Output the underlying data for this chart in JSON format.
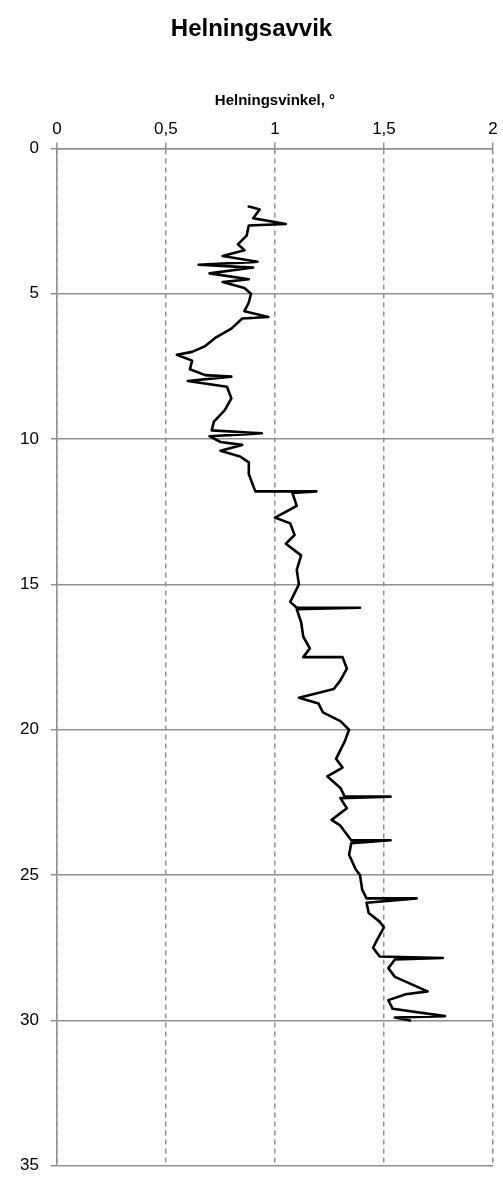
{
  "chart_data": {
    "type": "line",
    "title": "Helningsavvik",
    "xlabel": "Helningsvinkel, °",
    "xlim": [
      0,
      2
    ],
    "xticks": [
      0,
      {
        "value": 0.5,
        "label": "0,5"
      },
      1,
      {
        "value": 1.5,
        "label": "1,5"
      },
      2
    ],
    "ylim": [
      35,
      0
    ],
    "yticks": [
      0,
      5,
      10,
      15,
      20,
      25,
      30,
      35
    ],
    "grid": true,
    "legend": false,
    "marker": "none",
    "line_style": "solid",
    "series": [
      {
        "color": "#000000",
        "x": [
          0.88,
          0.93,
          0.9,
          1.05,
          0.88,
          0.87,
          0.83,
          0.86,
          0.76,
          0.92,
          0.65,
          0.9,
          0.7,
          0.88,
          0.76,
          0.86,
          0.89,
          0.88,
          0.86,
          0.97,
          0.85,
          0.8,
          0.73,
          0.68,
          0.62,
          0.55,
          0.62,
          0.61,
          0.68,
          0.8,
          0.6,
          0.78,
          0.8,
          0.77,
          0.72,
          0.71,
          0.94,
          0.7,
          0.75,
          0.85,
          0.75,
          0.84,
          0.88,
          0.88,
          0.9,
          0.91,
          1.19,
          1.08,
          1.1,
          1.0,
          1.07,
          1.09,
          1.05,
          1.12,
          1.1,
          1.11,
          1.07,
          1.1,
          1.39,
          1.1,
          1.12,
          1.13,
          1.16,
          1.13,
          1.31,
          1.33,
          1.3,
          1.27,
          1.11,
          1.2,
          1.22,
          1.3,
          1.34,
          1.32,
          1.3,
          1.28,
          1.31,
          1.24,
          1.3,
          1.32,
          1.53,
          1.3,
          1.33,
          1.26,
          1.3,
          1.35,
          1.53,
          1.35,
          1.34,
          1.37,
          1.39,
          1.4,
          1.42,
          1.65,
          1.42,
          1.43,
          1.48,
          1.5,
          1.47,
          1.45,
          1.48,
          1.77,
          1.55,
          1.52,
          1.55,
          1.7,
          1.6,
          1.52,
          1.54,
          1.78,
          1.55,
          1.62
        ],
        "values": [
          2.0,
          2.1,
          2.4,
          2.6,
          2.65,
          3.0,
          3.3,
          3.5,
          3.7,
          3.9,
          4.0,
          4.1,
          4.3,
          4.5,
          4.6,
          4.8,
          5.0,
          5.3,
          5.6,
          5.8,
          5.85,
          6.2,
          6.5,
          6.8,
          7.0,
          7.1,
          7.3,
          7.6,
          7.8,
          7.85,
          8.0,
          8.2,
          8.6,
          9.0,
          9.4,
          9.7,
          9.8,
          9.9,
          10.1,
          10.2,
          10.4,
          10.6,
          10.8,
          11.2,
          11.6,
          11.8,
          11.8,
          11.85,
          12.3,
          12.7,
          12.9,
          13.3,
          13.6,
          14.0,
          14.5,
          15.0,
          15.6,
          15.8,
          15.8,
          15.85,
          16.3,
          16.8,
          17.2,
          17.5,
          17.5,
          17.9,
          18.3,
          18.6,
          18.9,
          19.1,
          19.4,
          19.7,
          20.0,
          20.4,
          20.7,
          21.0,
          21.3,
          21.6,
          22.0,
          22.3,
          22.3,
          22.35,
          22.7,
          23.1,
          23.3,
          23.8,
          23.8,
          23.9,
          24.3,
          24.8,
          25.0,
          25.5,
          25.8,
          25.8,
          25.95,
          26.3,
          26.6,
          26.8,
          27.2,
          27.5,
          27.8,
          27.85,
          27.9,
          28.2,
          28.5,
          29.0,
          29.1,
          29.3,
          29.6,
          29.85,
          29.9,
          30.0
        ]
      }
    ]
  }
}
